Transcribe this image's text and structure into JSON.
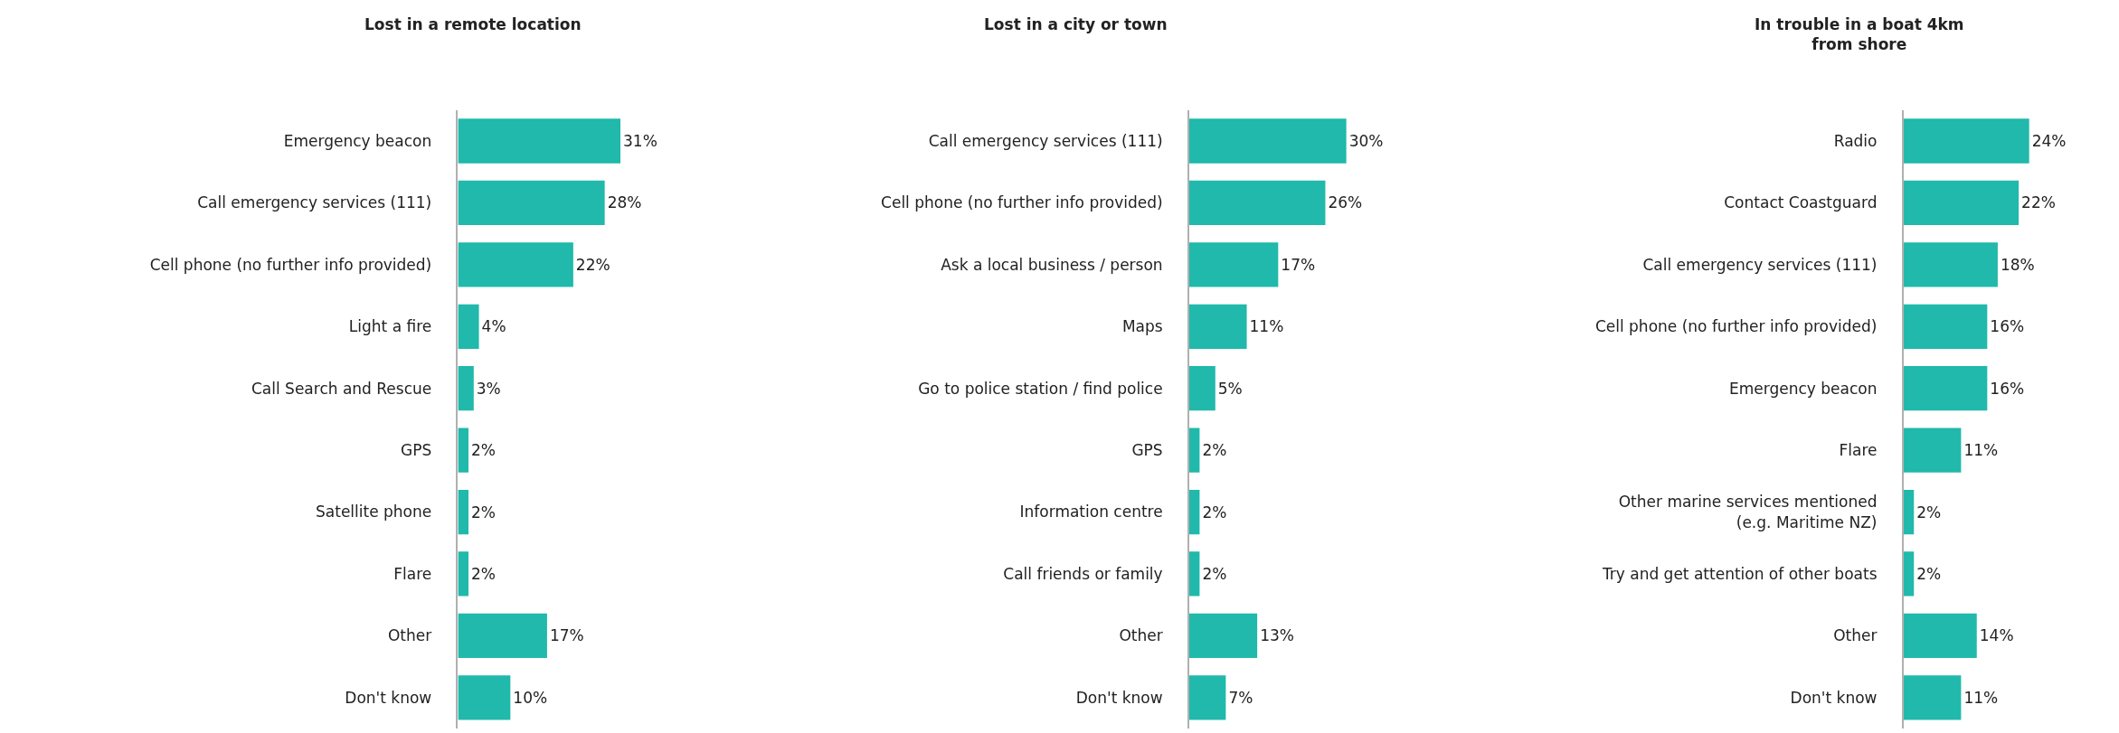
{
  "chart_data": [
    {
      "type": "bar",
      "orientation": "horizontal",
      "title": "Lost in a remote location",
      "categories": [
        "Emergency beacon",
        "Call emergency services (111)",
        "Cell phone (no further info provided)",
        "Light a fire",
        "Call Search and Rescue",
        "GPS",
        "Satellite phone",
        "Flare",
        "Other",
        "Don't know"
      ],
      "values": [
        31,
        28,
        22,
        4,
        3,
        2,
        2,
        2,
        17,
        10
      ],
      "value_labels": [
        "31%",
        "28%",
        "22%",
        "4%",
        "3%",
        "2%",
        "2%",
        "2%",
        "17%",
        "10%"
      ],
      "color": "#20b9ab",
      "tick_labels": "y"
    },
    {
      "type": "bar",
      "orientation": "horizontal",
      "title": "Lost in a city or town",
      "categories": [
        "Call emergency services (111)",
        "Cell phone (no further info provided)",
        "Ask a local business / person",
        "Maps",
        "Go to police station / find police",
        "GPS",
        "Information centre",
        "Call friends or family",
        "Other",
        "Don't know"
      ],
      "values": [
        30,
        26,
        17,
        11,
        5,
        2,
        2,
        2,
        13,
        7
      ],
      "value_labels": [
        "30%",
        "26%",
        "17%",
        "11%",
        "5%",
        "2%",
        "2%",
        "2%",
        "13%",
        "7%"
      ],
      "color": "#20b9ab",
      "tick_labels": "y"
    },
    {
      "type": "bar",
      "orientation": "horizontal",
      "title": "In trouble in a boat 4km\nfrom shore",
      "categories": [
        "Radio",
        "Contact Coastguard",
        "Call emergency services (111)",
        "Cell phone (no further info provided)",
        "Emergency beacon",
        "Flare",
        "Other marine services mentioned\n(e.g. Maritime NZ)",
        "Try and get attention of other boats",
        "Other",
        "Don't know"
      ],
      "values": [
        24,
        22,
        18,
        16,
        16,
        11,
        2,
        2,
        14,
        11
      ],
      "value_labels": [
        "24%",
        "22%",
        "18%",
        "16%",
        "16%",
        "11%",
        "2%",
        "2%",
        "14%",
        "11%"
      ],
      "color": "#20b9ab",
      "tick_labels": "y"
    }
  ]
}
